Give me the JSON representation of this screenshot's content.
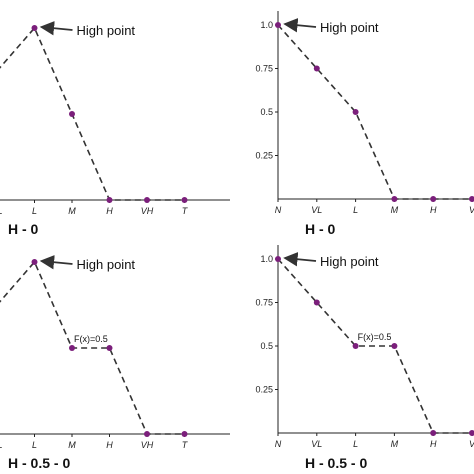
{
  "chart_data": [
    {
      "type": "line",
      "title": "H - 0",
      "categories": [
        "VL",
        "L",
        "M",
        "H",
        "VH",
        "T"
      ],
      "y_axis": false,
      "ylim": [
        0,
        1
      ],
      "series": [
        {
          "values": [
            0.75,
            1.0,
            0.5,
            0,
            0,
            0
          ]
        }
      ],
      "annotations": [
        {
          "text": "High point",
          "category": "L"
        }
      ]
    },
    {
      "type": "line",
      "title": "H - 0",
      "categories": [
        "N",
        "VL",
        "L",
        "M",
        "H",
        "V"
      ],
      "y_axis": true,
      "yticks": [
        "1.0",
        "0.75",
        "0.5",
        "0.25"
      ],
      "ylim": [
        0,
        1
      ],
      "series": [
        {
          "values": [
            1.0,
            0.75,
            0.5,
            0,
            0,
            0
          ]
        }
      ],
      "annotations": [
        {
          "text": "High point",
          "category": "N"
        }
      ]
    },
    {
      "type": "line",
      "title": "H - 0.5 - 0",
      "categories": [
        "VL",
        "L",
        "M",
        "H",
        "VH",
        "T"
      ],
      "y_axis": false,
      "ylim": [
        0,
        1
      ],
      "series": [
        {
          "values": [
            0.75,
            1.0,
            0.5,
            0.5,
            0,
            0
          ]
        }
      ],
      "annotations": [
        {
          "text": "High point",
          "category": "L"
        },
        {
          "text": "F(x)=0.5",
          "category": "M"
        }
      ]
    },
    {
      "type": "line",
      "title": "H - 0.5 - 0",
      "categories": [
        "N",
        "VL",
        "L",
        "M",
        "H",
        "V"
      ],
      "y_axis": true,
      "yticks": [
        "1.0",
        "0.75",
        "0.5",
        "0.25"
      ],
      "ylim": [
        0,
        1
      ],
      "series": [
        {
          "values": [
            1.0,
            0.75,
            0.5,
            0.5,
            0,
            0
          ]
        }
      ],
      "annotations": [
        {
          "text": "High point",
          "category": "N"
        },
        {
          "text": "F(x)=0.5",
          "category": "L"
        }
      ]
    }
  ],
  "colors": {
    "point": "#7b1f7b",
    "line": "#333333",
    "axis": "#222222"
  }
}
